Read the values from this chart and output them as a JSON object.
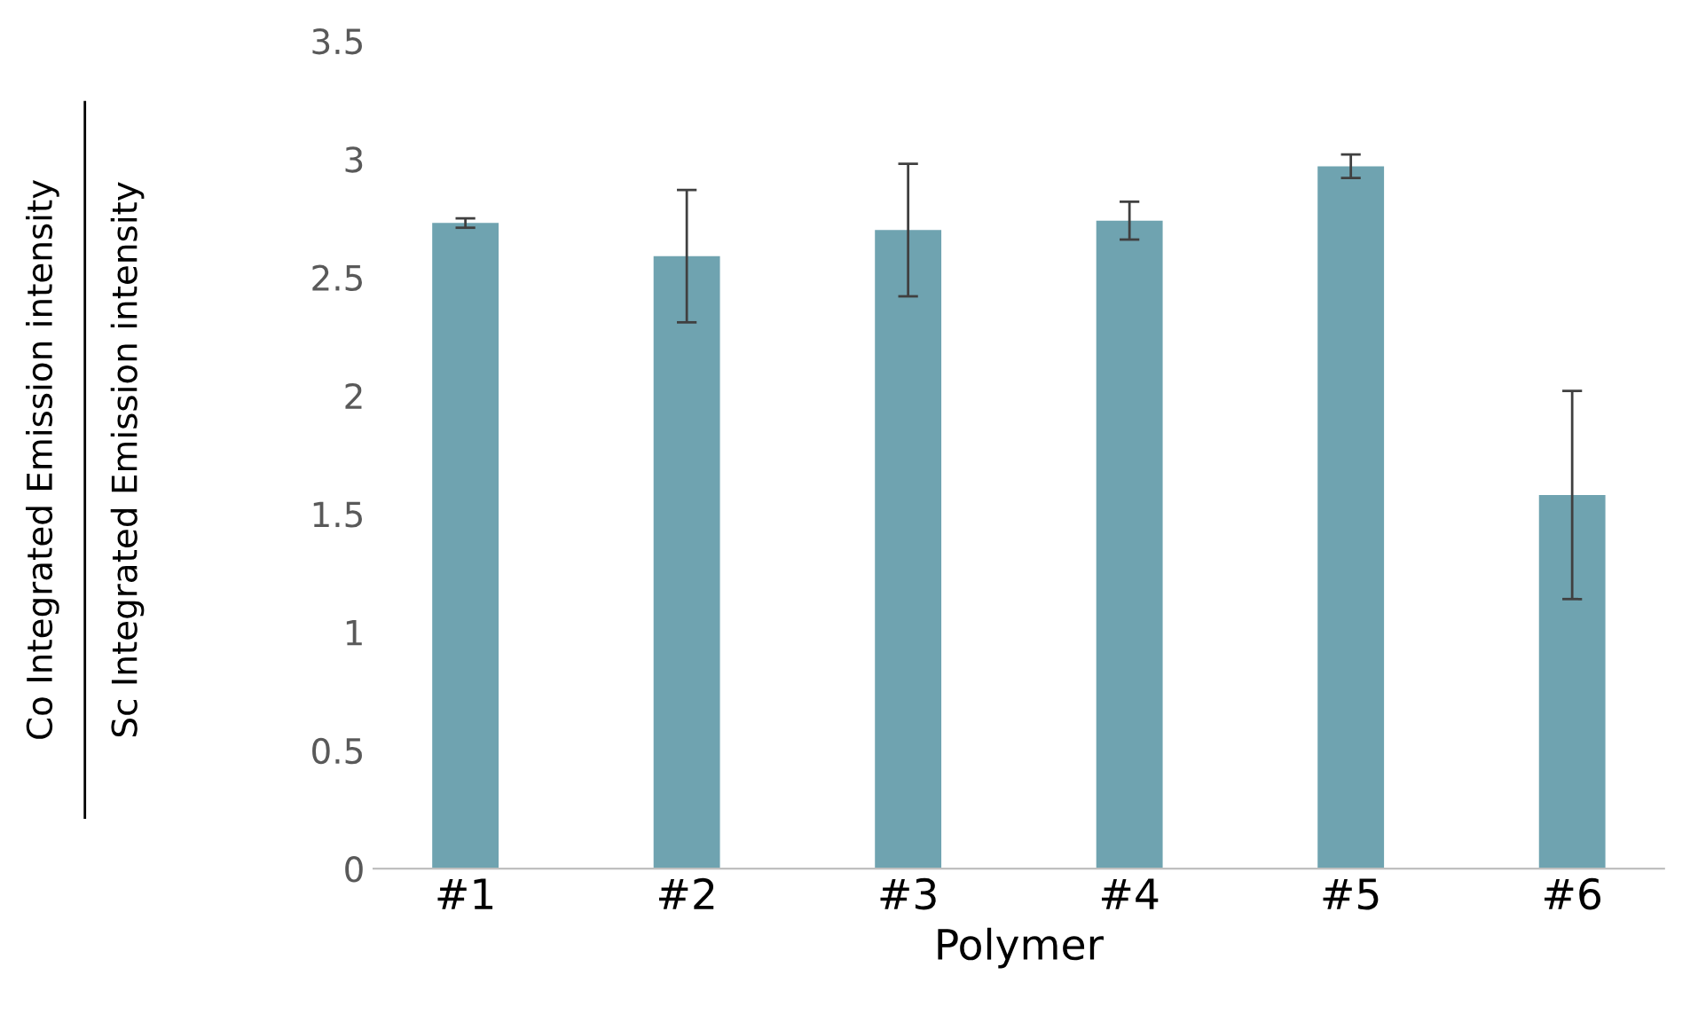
{
  "chart_data": {
    "type": "bar",
    "xlabel": "Polymer",
    "ylabel": [
      "Co Integrated Emission intensity",
      "Sc Integrated Emission intensity"
    ],
    "categories": [
      "#1",
      "#2",
      "#3",
      "#4",
      "#5",
      "#6"
    ],
    "values": [
      2.73,
      2.59,
      2.7,
      2.74,
      2.97,
      1.58
    ],
    "errors": [
      0.02,
      0.28,
      0.28,
      0.08,
      0.05,
      0.44
    ],
    "color": "#6fa3b0",
    "ylim": [
      0,
      3.5
    ],
    "yticks": [
      0,
      0.5,
      1,
      1.5,
      2,
      2.5,
      3,
      3.5
    ],
    "grid": false
  }
}
